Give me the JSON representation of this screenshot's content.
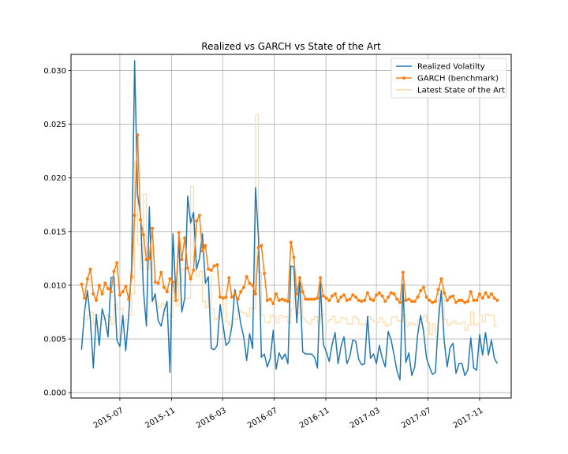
{
  "chart_data": {
    "type": "line",
    "title": "Realized vs GARCH vs State of the Art",
    "xlabel": "",
    "ylabel": "",
    "grid": true,
    "legend_position": "top-right",
    "x_start": "2015-04-01",
    "x_step_days": 7,
    "x_range": [
      "2015-03-07",
      "2018-01-15"
    ],
    "ylim": [
      -0.0005,
      0.0315
    ],
    "x_ticks": [
      {
        "date": "2015-07-01",
        "label": "2015-07"
      },
      {
        "date": "2015-11-01",
        "label": "2015-11"
      },
      {
        "date": "2016-03-01",
        "label": "2016-03"
      },
      {
        "date": "2016-07-01",
        "label": "2016-07"
      },
      {
        "date": "2016-11-01",
        "label": "2016-11"
      },
      {
        "date": "2017-03-01",
        "label": "2017-03"
      },
      {
        "date": "2017-07-01",
        "label": "2017-07"
      },
      {
        "date": "2017-11-01",
        "label": "2017-11"
      }
    ],
    "y_ticks": [
      {
        "value": 0.0,
        "label": "0.000"
      },
      {
        "value": 0.005,
        "label": "0.005"
      },
      {
        "value": 0.01,
        "label": "0.010"
      },
      {
        "value": 0.015,
        "label": "0.015"
      },
      {
        "value": 0.02,
        "label": "0.020"
      },
      {
        "value": 0.025,
        "label": "0.025"
      },
      {
        "value": 0.03,
        "label": "0.030"
      }
    ],
    "series": [
      {
        "name": "Realized Volatilty",
        "color": "#1f77b4",
        "marker": "none",
        "values": [
          0.004,
          0.0075,
          0.0095,
          0.0068,
          0.0023,
          0.0073,
          0.0044,
          0.0078,
          0.0068,
          0.0052,
          0.0107,
          0.0108,
          0.0049,
          0.0043,
          0.0072,
          0.0039,
          0.0072,
          0.0118,
          0.0309,
          0.0185,
          0.0165,
          0.0095,
          0.0062,
          0.0173,
          0.0085,
          0.0092,
          0.0067,
          0.0062,
          0.0076,
          0.0085,
          0.0019,
          0.0148,
          0.0092,
          0.0142,
          0.0075,
          0.0088,
          0.0183,
          0.0158,
          0.0168,
          0.0115,
          0.0125,
          0.0148,
          0.0102,
          0.0108,
          0.0041,
          0.004,
          0.0044,
          0.0082,
          0.0063,
          0.0044,
          0.0047,
          0.0062,
          0.0096,
          0.0082,
          0.0064,
          0.0052,
          0.003,
          0.0055,
          0.0041,
          0.0191,
          0.0145,
          0.0033,
          0.0036,
          0.0024,
          0.0032,
          0.0058,
          0.0022,
          0.0037,
          0.0031,
          0.0036,
          0.0027,
          0.0118,
          0.0117,
          0.0065,
          0.0106,
          0.0038,
          0.0036,
          0.0036,
          0.0036,
          0.0033,
          0.0023,
          0.0102,
          0.0045,
          0.0038,
          0.0029,
          0.0045,
          0.0056,
          0.0027,
          0.0043,
          0.0052,
          0.0027,
          0.0034,
          0.0049,
          0.0048,
          0.0031,
          0.0026,
          0.0027,
          0.0071,
          0.0032,
          0.0036,
          0.0027,
          0.0044,
          0.0032,
          0.0024,
          0.0057,
          0.0049,
          0.0035,
          0.002,
          0.0012,
          0.0101,
          0.0028,
          0.0037,
          0.0016,
          0.0024,
          0.0054,
          0.0072,
          0.0057,
          0.0032,
          0.0024,
          0.0017,
          0.0019,
          0.0066,
          0.0095,
          0.0048,
          0.0024,
          0.0042,
          0.0046,
          0.0018,
          0.0027,
          0.0027,
          0.0016,
          0.0021,
          0.0051,
          0.0023,
          0.0021,
          0.0054,
          0.0035,
          0.0056,
          0.0035,
          0.0049,
          0.0032,
          0.0027
        ]
      },
      {
        "name": "GARCH (benchmark)",
        "color": "#ff7f0e",
        "marker": "dot",
        "values": [
          0.0101,
          0.0088,
          0.0106,
          0.0115,
          0.0092,
          0.0086,
          0.01,
          0.0092,
          0.0102,
          0.0097,
          0.0094,
          0.0113,
          0.0121,
          0.0091,
          0.0094,
          0.0099,
          0.0087,
          0.0108,
          0.0165,
          0.024,
          0.0161,
          0.0147,
          0.0124,
          0.0125,
          0.0153,
          0.0103,
          0.0102,
          0.0112,
          0.0098,
          0.0094,
          0.0106,
          0.0103,
          0.0086,
          0.0149,
          0.0124,
          0.0144,
          0.0116,
          0.0106,
          0.0114,
          0.016,
          0.0165,
          0.0132,
          0.0137,
          0.0115,
          0.0114,
          0.0118,
          0.0119,
          0.0089,
          0.0088,
          0.0089,
          0.0107,
          0.0089,
          0.0092,
          0.0087,
          0.0094,
          0.0098,
          0.0108,
          0.0102,
          0.01,
          0.0092,
          0.0135,
          0.0137,
          0.0111,
          0.0086,
          0.0087,
          0.0083,
          0.0092,
          0.0086,
          0.0087,
          0.0086,
          0.0085,
          0.014,
          0.0126,
          0.0092,
          0.0107,
          0.0094,
          0.0087,
          0.0087,
          0.0087,
          0.0087,
          0.0088,
          0.0107,
          0.009,
          0.0088,
          0.0086,
          0.009,
          0.0092,
          0.0085,
          0.0089,
          0.0091,
          0.0086,
          0.0087,
          0.0091,
          0.0089,
          0.0086,
          0.0085,
          0.0086,
          0.0093,
          0.0087,
          0.0086,
          0.0091,
          0.0093,
          0.009,
          0.0085,
          0.0089,
          0.0093,
          0.0092,
          0.0087,
          0.0084,
          0.0112,
          0.0086,
          0.0087,
          0.0085,
          0.0085,
          0.0089,
          0.0095,
          0.0098,
          0.0089,
          0.0086,
          0.0084,
          0.0085,
          0.0096,
          0.0106,
          0.0093,
          0.0086,
          0.0089,
          0.009,
          0.0084,
          0.0086,
          0.0086,
          0.0084,
          0.0085,
          0.0094,
          0.0086,
          0.0086,
          0.0092,
          0.0088,
          0.0093,
          0.0089,
          0.0092,
          0.0088,
          0.0086
        ]
      },
      {
        "name": "Latest State of the Art",
        "color": "#ffd9a8",
        "marker": "none",
        "values": [
          0.007,
          0.0068,
          0.0072,
          0.0075,
          0.0064,
          0.0072,
          0.0069,
          0.0068,
          0.0072,
          0.0071,
          0.0064,
          0.0082,
          0.0078,
          0.0078,
          0.0065,
          0.0068,
          0.0072,
          0.0092,
          0.0215,
          0.0138,
          0.0115,
          0.0185,
          0.0115,
          0.0136,
          0.0092,
          0.0083,
          0.0079,
          0.0083,
          0.0072,
          0.0073,
          0.007,
          0.0089,
          0.0081,
          0.0103,
          0.0115,
          0.0088,
          0.0088,
          0.0192,
          0.0123,
          0.0108,
          0.0113,
          0.0085,
          0.0079,
          0.0108,
          0.0078,
          0.0068,
          0.007,
          0.0074,
          0.0088,
          0.0066,
          0.0063,
          0.0069,
          0.0068,
          0.0077,
          0.0075,
          0.0074,
          0.0071,
          0.0079,
          0.0078,
          0.0259,
          0.0112,
          0.0072,
          0.0066,
          0.0065,
          0.0072,
          0.0071,
          0.0065,
          0.0072,
          0.007,
          0.0071,
          0.0065,
          0.0078,
          0.0092,
          0.0074,
          0.0102,
          0.0069,
          0.0066,
          0.0064,
          0.0068,
          0.0071,
          0.0064,
          0.0073,
          0.0073,
          0.0066,
          0.0068,
          0.0071,
          0.0065,
          0.0066,
          0.007,
          0.0069,
          0.0064,
          0.0064,
          0.0071,
          0.0069,
          0.0064,
          0.0063,
          0.0064,
          0.0071,
          0.0068,
          0.0066,
          0.0065,
          0.007,
          0.0066,
          0.0062,
          0.0063,
          0.007,
          0.0071,
          0.0067,
          0.0066,
          0.0073,
          0.0062,
          0.0065,
          0.0064,
          0.0063,
          0.0068,
          0.0069,
          0.0072,
          0.0066,
          0.0054,
          0.0064,
          0.0052,
          0.0092,
          0.0097,
          0.0068,
          0.0063,
          0.0065,
          0.0067,
          0.0064,
          0.0064,
          0.0066,
          0.0058,
          0.0063,
          0.0075,
          0.0063,
          0.0064,
          0.0072,
          0.0066,
          0.0073,
          0.0072,
          0.0072,
          0.0062,
          0.0062
        ]
      }
    ]
  }
}
